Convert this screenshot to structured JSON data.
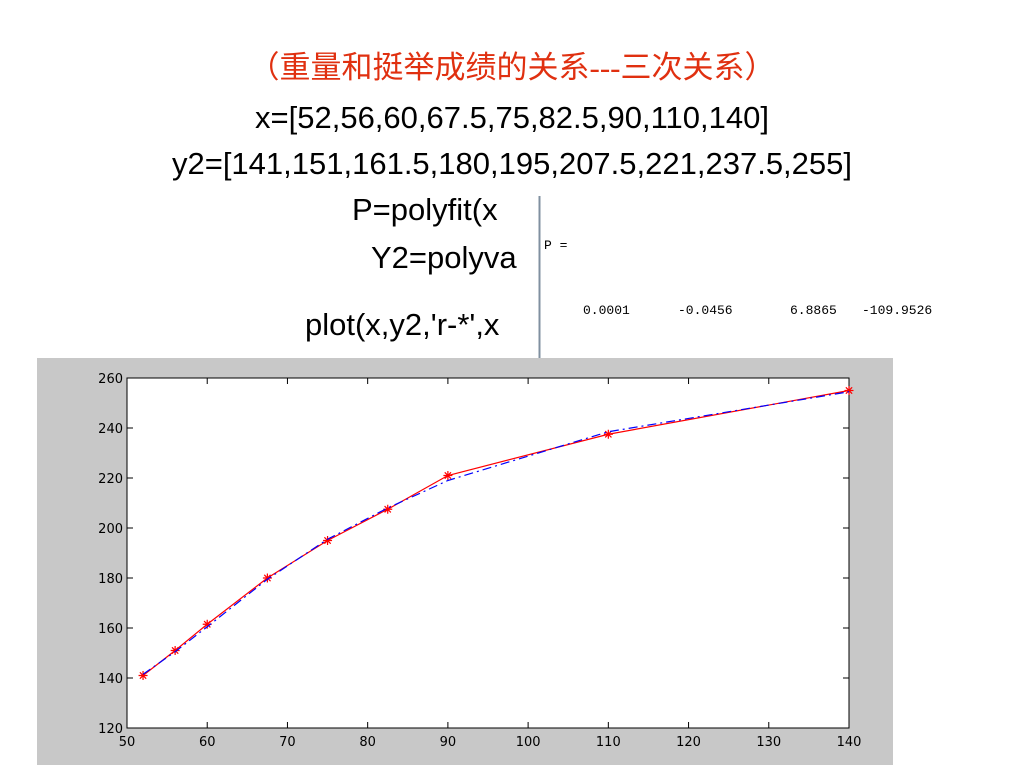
{
  "slide": {
    "title": "（重量和挺举成绩的关系---三次关系）",
    "lines": [
      "x=[52,56,60,67.5,75,82.5,90,110,140]",
      "y2=[141,151,161.5,180,195,207.5,221,237.5,255]",
      "P=polyfit(x",
      "Y2=polyva",
      "plot(x,y2,'r-*',x"
    ],
    "output": {
      "label": "P =",
      "coefficients": [
        "0.0001",
        "-0.0456",
        "6.8865",
        "-109.9526"
      ]
    }
  },
  "chart_data": {
    "type": "line",
    "x": [
      52,
      56,
      60,
      67.5,
      75,
      82.5,
      90,
      110,
      140
    ],
    "series": [
      {
        "color": "#ff0000",
        "marker": "*",
        "dash": "none",
        "values": [
          141,
          151,
          161.5,
          180,
          195,
          207.5,
          221,
          237.5,
          255
        ]
      },
      {
        "color": "#0000ff",
        "marker": "none",
        "dash": "9 4 2 4",
        "values": [
          141.5,
          150.5,
          160.5,
          179.5,
          195.5,
          208,
          219,
          238.5,
          254.5
        ]
      }
    ],
    "xlim": [
      50,
      140
    ],
    "ylim": [
      120,
      260
    ],
    "xticks": [
      50,
      60,
      70,
      80,
      90,
      100,
      110,
      120,
      130,
      140
    ],
    "yticks": [
      120,
      140,
      160,
      180,
      200,
      220,
      240,
      260
    ],
    "grid": false
  }
}
